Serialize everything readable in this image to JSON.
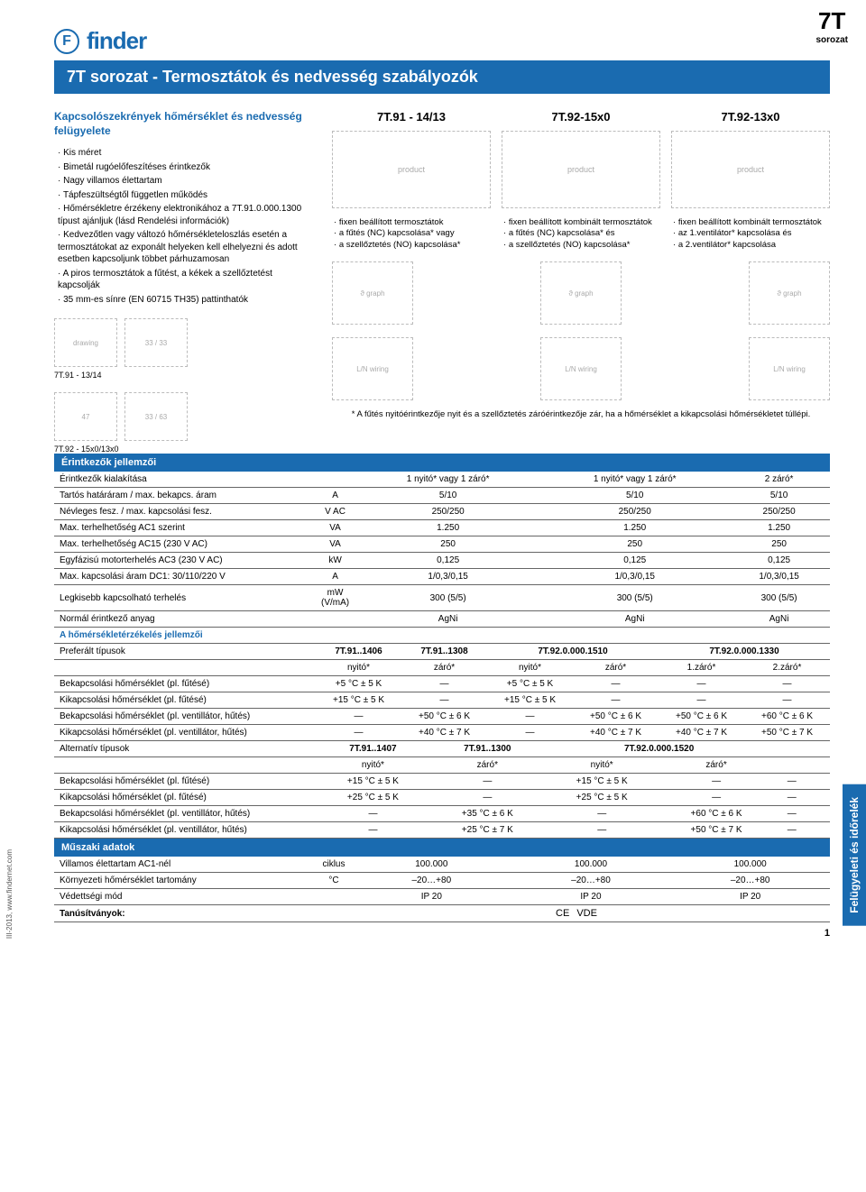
{
  "corner": {
    "big": "7T",
    "small": "sorozat"
  },
  "brand": {
    "icon": "F",
    "name": "finder"
  },
  "title": "7T sorozat - Termosztátok és nedvesség szabályozók",
  "intro_heading": "Kapcsolószekrények hőmérséklet és nedvesség felügyelete",
  "intro_bullets": [
    "Kis méret",
    "Bimetál rugóelőfeszítéses érintkezők",
    "Nagy villamos élettartam",
    "Tápfeszültségtől független működés",
    "Hőmérsékletre érzékeny elektronikához a 7T.91.0.000.1300 típust ajánljuk (lásd Rendelési információk)",
    "Kedvezőtlen vagy változó hőmérsékleteloszlás esetén a termosztátokat az exponált helyeken kell elhelyezni és adott esetben kapcsoljunk többet párhuzamosan",
    "A piros termosztátok a fűtést, a kékek a szellőztetést kapcsolják",
    "35 mm-es sínre (EN 60715 TH35) pattinthatók"
  ],
  "models": [
    {
      "title": "7T.91 - 14/13",
      "bullets": [
        "fixen beállított termosztátok",
        "a fűtés (NC) kapcsolása* vagy",
        "a szellőztetés (NO) kapcsolása*"
      ]
    },
    {
      "title": "7T.92-15x0",
      "bullets": [
        "fixen beállított kombinált termosztátok",
        "a fűtés (NC) kapcsolása* és",
        "a szellőztetés (NO) kapcsolása*"
      ]
    },
    {
      "title": "7T.92-13x0",
      "bullets": [
        "fixen beállított kombinált termosztátok",
        "az 1.ventilátor* kapcsolása és",
        "a 2.ventilátor* kapcsolása"
      ]
    }
  ],
  "dim_labels": {
    "a": "7T.91 - 13/14",
    "b": "7T.92 - 15x0/13x0"
  },
  "footnote": "* A fűtés nyitóérintkezője nyit és a szellőztetés záróérintkezője zár, ha a hőmérséklet a kikapcsolási hőmérsékletet túllépi.",
  "sections": {
    "contact": "Érintkezők jellemzői",
    "temp": "A hőmérsékletérzékelés jellemzői",
    "tech": "Műszaki adatok",
    "cert": "Tanúsítványok:"
  },
  "contact_rows": [
    {
      "label": "Érintkezők kialakítása",
      "unit": "",
      "v": [
        "1 nyitó* vagy 1 záró*",
        "1 nyitó* vagy 1 záró*",
        "2 záró*"
      ]
    },
    {
      "label": "Tartós határáram / max. bekapcs. áram",
      "unit": "A",
      "v": [
        "5/10",
        "5/10",
        "5/10"
      ]
    },
    {
      "label": "Névleges fesz. / max. kapcsolási fesz.",
      "unit": "V AC",
      "v": [
        "250/250",
        "250/250",
        "250/250"
      ]
    },
    {
      "label": "Max. terhelhetőség AC1 szerint",
      "unit": "VA",
      "v": [
        "1.250",
        "1.250",
        "1.250"
      ]
    },
    {
      "label": "Max. terhelhetőség AC15 (230 V AC)",
      "unit": "VA",
      "v": [
        "250",
        "250",
        "250"
      ]
    },
    {
      "label": "Egyfázisú motorterhelés AC3 (230 V AC)",
      "unit": "kW",
      "v": [
        "0,125",
        "0,125",
        "0,125"
      ]
    },
    {
      "label": "Max. kapcsolási áram DC1: 30/110/220 V",
      "unit": "A",
      "v": [
        "1/0,3/0,15",
        "1/0,3/0,15",
        "1/0,3/0,15"
      ]
    },
    {
      "label": "Legkisebb kapcsolható terhelés",
      "unit": "mW (V/mA)",
      "v": [
        "300 (5/5)",
        "300 (5/5)",
        "300 (5/5)"
      ]
    },
    {
      "label": "Normál érintkező anyag",
      "unit": "",
      "v": [
        "AgNi",
        "AgNi",
        "AgNi"
      ]
    }
  ],
  "temp_head": {
    "label": "Preferált típusok",
    "types": [
      "7T.91..1406",
      "7T.91..1308",
      "7T.92.0.000.1510",
      "7T.92.0.000.1330"
    ],
    "subs": [
      "nyitó*",
      "záró*",
      "nyitó*",
      "záró*",
      "1.záró*",
      "2.záró*"
    ]
  },
  "temp_rows": [
    {
      "label": "Bekapcsolási hőmérséklet (pl. fűtésé)",
      "v": [
        "+5 °C ± 5 K",
        "—",
        "+5 °C ± 5 K",
        "—",
        "—",
        "—"
      ]
    },
    {
      "label": "Kikapcsolási hőmérséklet (pl. fűtésé)",
      "v": [
        "+15 °C ± 5 K",
        "—",
        "+15 °C ± 5 K",
        "—",
        "—",
        "—"
      ]
    },
    {
      "label": "Bekapcsolási hőmérséklet (pl. ventillátor, hűtés)",
      "v": [
        "—",
        "+50 °C ± 6 K",
        "—",
        "+50 °C ± 6 K",
        "+50 °C ± 6 K",
        "+60 °C ± 6 K"
      ]
    },
    {
      "label": "Kikapcsolási hőmérséklet (pl. ventillátor, hűtés)",
      "v": [
        "—",
        "+40 °C ± 7 K",
        "—",
        "+40 °C ± 7 K",
        "+40 °C ± 7 K",
        "+50 °C ± 7 K"
      ]
    }
  ],
  "alt_head": {
    "label": "Alternatív típusok",
    "types": [
      "7T.91..1407",
      "7T.91..1300",
      "7T.92.0.000.1520",
      ""
    ],
    "subs": [
      "nyitó*",
      "záró*",
      "nyitó*",
      "záró*",
      "",
      ""
    ]
  },
  "alt_rows": [
    {
      "label": "Bekapcsolási hőmérséklet (pl. fűtésé)",
      "v": [
        "+15 °C ± 5 K",
        "—",
        "+15 °C ± 5 K",
        "—",
        "—",
        ""
      ]
    },
    {
      "label": "Kikapcsolási hőmérséklet (pl. fűtésé)",
      "v": [
        "+25 °C ± 5 K",
        "—",
        "+25 °C ± 5 K",
        "—",
        "—",
        ""
      ]
    },
    {
      "label": "Bekapcsolási hőmérséklet (pl. ventillátor, hűtés)",
      "v": [
        "—",
        "+35 °C ± 6 K",
        "—",
        "+60 °C ± 6 K",
        "—",
        ""
      ]
    },
    {
      "label": "Kikapcsolási hőmérséklet (pl. ventillátor, hűtés)",
      "v": [
        "—",
        "+25 °C ± 7 K",
        "—",
        "+50 °C ± 7 K",
        "—",
        ""
      ]
    }
  ],
  "tech_rows": [
    {
      "label": "Villamos élettartam AC1-nél",
      "unit": "ciklus",
      "v": [
        "100.000",
        "100.000",
        "100.000"
      ]
    },
    {
      "label": "Környezeti hőmérséklet tartomány",
      "unit": "°C",
      "v": [
        "–20…+80",
        "–20…+80",
        "–20…+80"
      ]
    },
    {
      "label": "Védettségi mód",
      "unit": "",
      "v": [
        "IP 20",
        "IP 20",
        "IP 20"
      ]
    }
  ],
  "certs": [
    "CE",
    "VDE"
  ],
  "side_tab": "Felügyeleti és időrelék",
  "side_left": "III-2013, www.findernet.com",
  "pagenum": "1"
}
